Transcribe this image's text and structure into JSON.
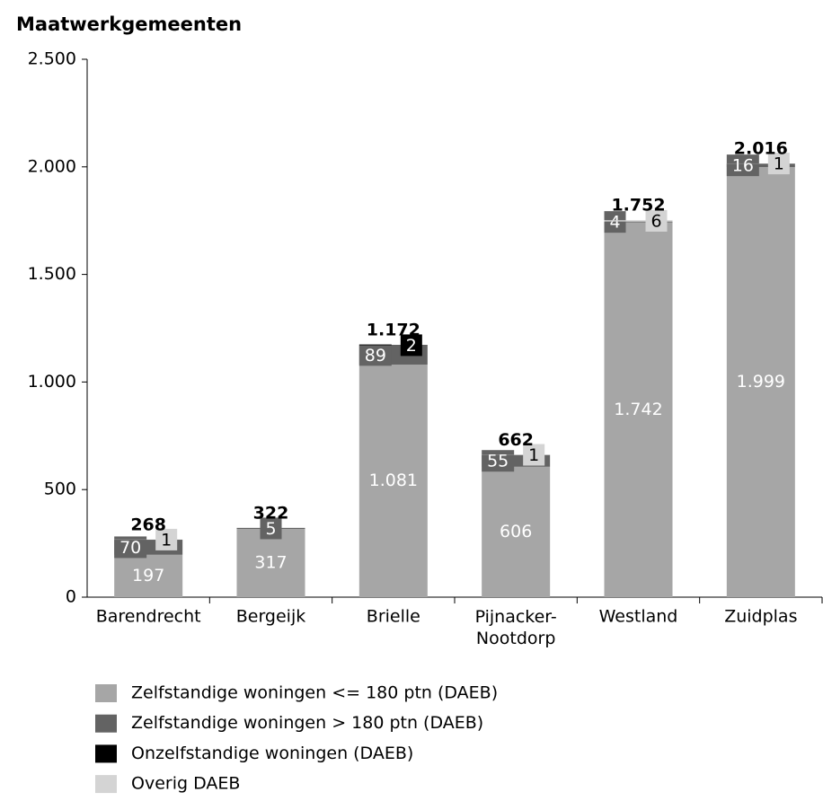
{
  "chart_data": {
    "type": "stacked_bar",
    "title": "Maatwerkgemeenten",
    "categories": [
      "Barendrecht",
      "Bergeijk",
      "Brielle",
      "Pijnacker-Nootdorp",
      "Westland",
      "Zuidplas"
    ],
    "series": [
      {
        "name": "Zelfstandige woningen <= 180 ptn (DAEB)",
        "color": "#a6a6a6",
        "values": [
          197,
          317,
          1081,
          606,
          1742,
          1999
        ],
        "value_labels": [
          "197",
          "317",
          "1.081",
          "606",
          "1.742",
          "1.999"
        ]
      },
      {
        "name": "Zelfstandige woningen > 180 ptn (DAEB)",
        "color": "#636363",
        "values": [
          70,
          5,
          89,
          55,
          4,
          16
        ]
      },
      {
        "name": "Onzelfstandige woningen (DAEB)",
        "color": "#000000",
        "values": [
          null,
          null,
          2,
          null,
          null,
          null
        ]
      },
      {
        "name": "Overig DAEB",
        "color": "#d4d4d4",
        "values": [
          1,
          null,
          null,
          1,
          6,
          1
        ]
      }
    ],
    "totals": {
      "values": [
        268,
        322,
        1172,
        662,
        1752,
        2016
      ],
      "value_labels": [
        "268",
        "322",
        "1.172",
        "662",
        "1.752",
        "2.016"
      ]
    },
    "ylim": [
      0,
      2500
    ],
    "yticks": [
      0,
      500,
      {
        "value": 1000,
        "label": "1.000"
      },
      {
        "value": 1500,
        "label": "1.500"
      },
      {
        "value": 2000,
        "label": "2.000"
      },
      {
        "value": 2500,
        "label": "2.500"
      }
    ],
    "grid": false,
    "legend": "bottom"
  }
}
